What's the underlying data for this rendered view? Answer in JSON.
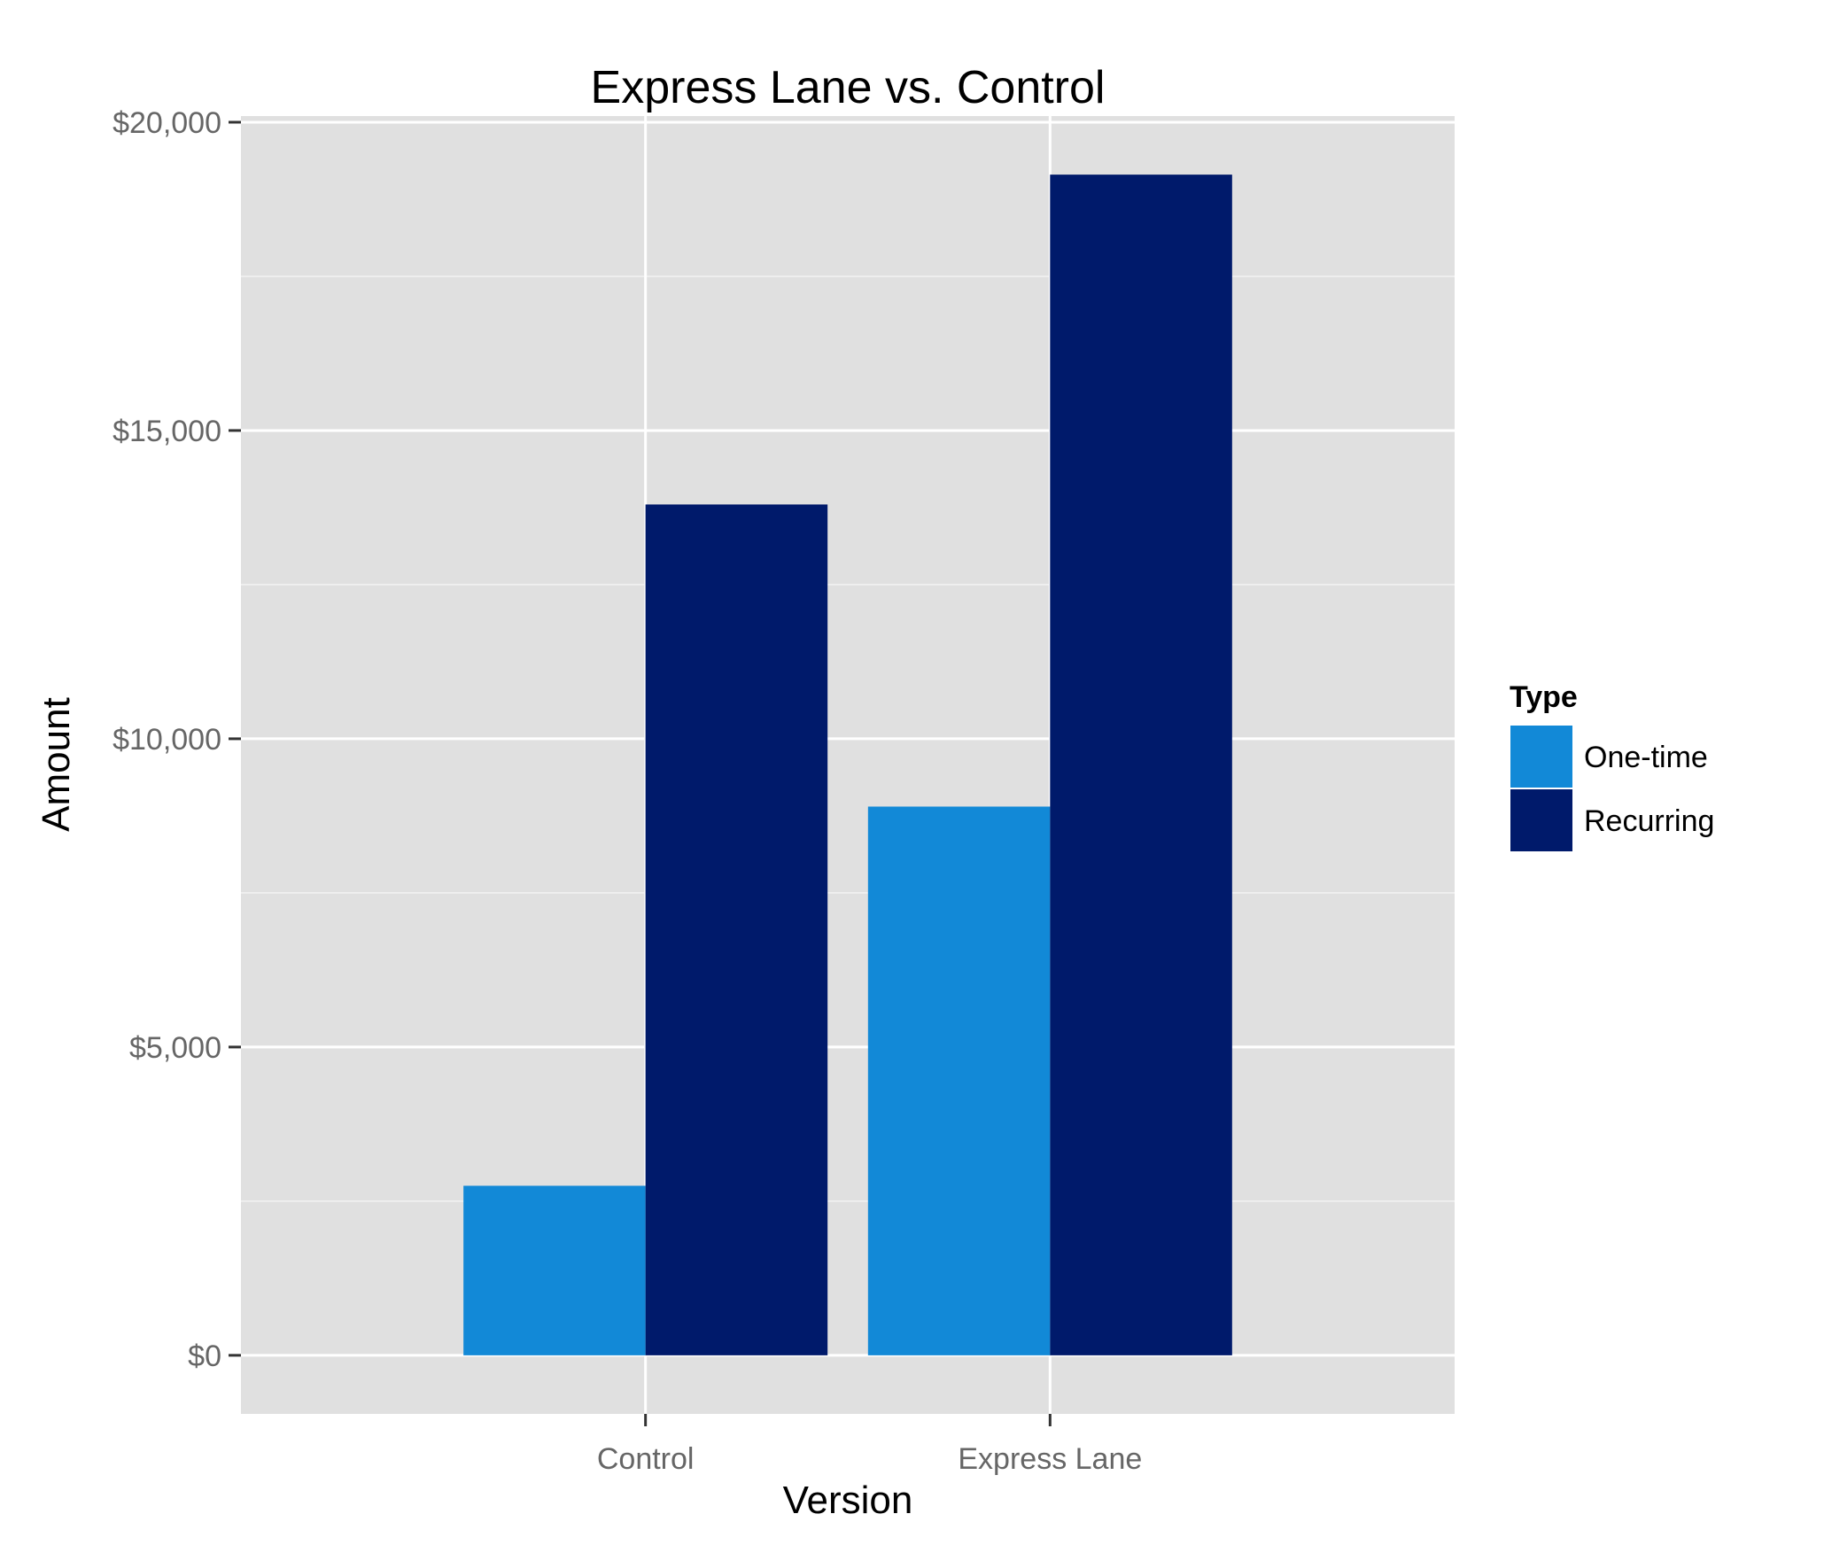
{
  "chart_data": {
    "type": "bar",
    "title": "Express Lane vs. Control",
    "xlabel": "Version",
    "ylabel": "Amount",
    "categories": [
      "Control",
      "Express Lane"
    ],
    "series": [
      {
        "name": "One-time",
        "color": "#1289d7",
        "values": [
          2750,
          8900
        ]
      },
      {
        "name": "Recurring",
        "color": "#001a6b",
        "values": [
          13800,
          19150
        ]
      }
    ],
    "ylim": [
      -950,
      20100
    ],
    "yticks": [
      0,
      5000,
      10000,
      15000,
      20000
    ],
    "ytick_labels": [
      "$0",
      "$5,000",
      "$10,000",
      "$15,000",
      "$20,000"
    ],
    "legend": {
      "title": "Type",
      "position": "right"
    },
    "panel_background": "#e0e0e0",
    "grid": true
  }
}
